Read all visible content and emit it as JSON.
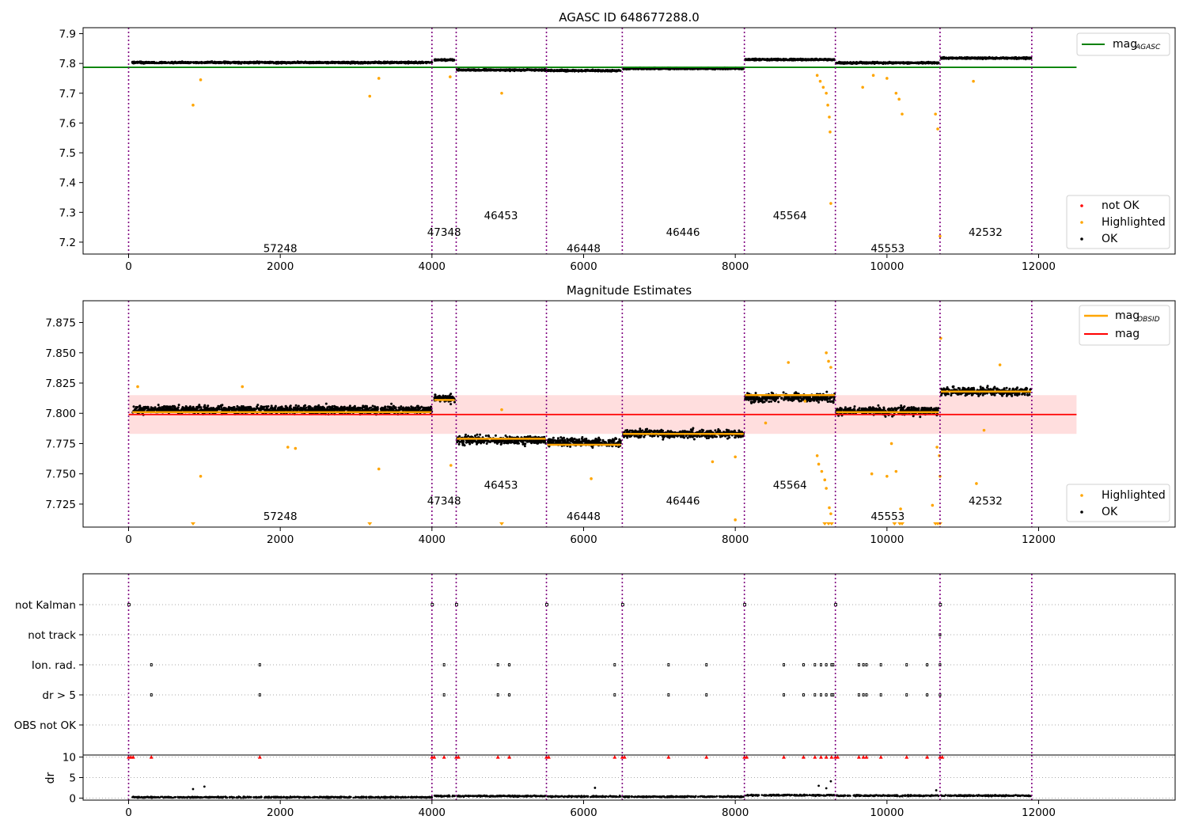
{
  "chart_data": [
    {
      "panel": "top",
      "type": "scatter",
      "title": "AGASC ID 648677288.0",
      "xlim": [
        -600,
        13800
      ],
      "ylim": [
        7.16,
        7.92
      ],
      "xticks": [
        0,
        2000,
        4000,
        6000,
        8000,
        10000,
        12000
      ],
      "yticks": [
        7.2,
        7.3,
        7.4,
        7.5,
        7.6,
        7.7,
        7.8,
        7.9
      ],
      "ok_series": [
        {
          "x0": 50,
          "x1": 4000,
          "y": 7.803
        },
        {
          "x0": 4030,
          "x1": 4300,
          "y": 7.812
        },
        {
          "x0": 4330,
          "x1": 5500,
          "y": 7.778
        },
        {
          "x0": 5520,
          "x1": 6490,
          "y": 7.776
        },
        {
          "x0": 6520,
          "x1": 8110,
          "y": 7.783
        },
        {
          "x0": 8130,
          "x1": 9310,
          "y": 7.813
        },
        {
          "x0": 9330,
          "x1": 10680,
          "y": 7.802
        },
        {
          "x0": 10710,
          "x1": 11900,
          "y": 7.818
        }
      ],
      "highlighted_points": [
        [
          850,
          7.66
        ],
        [
          950,
          7.745
        ],
        [
          3180,
          7.69
        ],
        [
          3300,
          7.75
        ],
        [
          4240,
          7.755
        ],
        [
          4920,
          7.7
        ],
        [
          9080,
          7.76
        ],
        [
          9120,
          7.74
        ],
        [
          9160,
          7.72
        ],
        [
          9200,
          7.7
        ],
        [
          9220,
          7.66
        ],
        [
          9240,
          7.62
        ],
        [
          9250,
          7.57
        ],
        [
          9260,
          7.33
        ],
        [
          9680,
          7.72
        ],
        [
          9820,
          7.76
        ],
        [
          10000,
          7.75
        ],
        [
          10120,
          7.7
        ],
        [
          10160,
          7.68
        ],
        [
          10200,
          7.63
        ],
        [
          10640,
          7.63
        ],
        [
          10670,
          7.58
        ],
        [
          10700,
          7.22
        ],
        [
          11140,
          7.74
        ]
      ],
      "reference_line": {
        "name": "mag_AGASC",
        "y": 7.787,
        "x_start": -600,
        "x_end": 12500
      },
      "obsid_boundaries": [
        0,
        4000,
        4320,
        5510,
        6510,
        8120,
        9320,
        10700,
        11910
      ],
      "obsid_labels": [
        {
          "text": "57248",
          "x": 2000,
          "y": 7.18
        },
        {
          "text": "47348",
          "x": 4160,
          "y": 7.235
        },
        {
          "text": "46453",
          "x": 4910,
          "y": 7.29
        },
        {
          "text": "46448",
          "x": 6000,
          "y": 7.18
        },
        {
          "text": "46446",
          "x": 7310,
          "y": 7.235
        },
        {
          "text": "45564",
          "x": 8720,
          "y": 7.29
        },
        {
          "text": "45553",
          "x": 10010,
          "y": 7.18
        },
        {
          "text": "42532",
          "x": 11300,
          "y": 7.235
        }
      ],
      "legend_upper": {
        "placement": "top-right",
        "entries": [
          {
            "label": "mag",
            "sub": "AGASC",
            "color": "#008000"
          }
        ]
      },
      "legend_lower": {
        "placement": "bottom-right",
        "entries": [
          {
            "label": "not OK",
            "color": "#ff0000"
          },
          {
            "label": "Highlighted",
            "color": "#ffa500"
          },
          {
            "label": "OK",
            "color": "#000000"
          }
        ]
      }
    },
    {
      "panel": "middle",
      "type": "scatter",
      "title": "Magnitude Estimates",
      "xlim": [
        -600,
        13800
      ],
      "ylim": [
        7.706,
        7.893
      ],
      "xticks": [
        0,
        2000,
        4000,
        6000,
        8000,
        10000,
        12000
      ],
      "yticks": [
        7.725,
        7.75,
        7.775,
        7.8,
        7.825,
        7.85,
        7.875
      ],
      "ok_series": [
        {
          "x0": 50,
          "x1": 4000,
          "y": 7.803
        },
        {
          "x0": 4030,
          "x1": 4300,
          "y": 7.812
        },
        {
          "x0": 4330,
          "x1": 5500,
          "y": 7.778
        },
        {
          "x0": 5520,
          "x1": 6490,
          "y": 7.776
        },
        {
          "x0": 6520,
          "x1": 8110,
          "y": 7.783
        },
        {
          "x0": 8130,
          "x1": 9310,
          "y": 7.813
        },
        {
          "x0": 9330,
          "x1": 10680,
          "y": 7.802
        },
        {
          "x0": 10710,
          "x1": 11900,
          "y": 7.818
        }
      ],
      "mag_obsid_segments": [
        {
          "x0": 50,
          "x1": 4000,
          "y": 7.801
        },
        {
          "x0": 4030,
          "x1": 4300,
          "y": 7.811
        },
        {
          "x0": 4330,
          "x1": 5500,
          "y": 7.779
        },
        {
          "x0": 5520,
          "x1": 6490,
          "y": 7.774
        },
        {
          "x0": 6520,
          "x1": 8110,
          "y": 7.783
        },
        {
          "x0": 8130,
          "x1": 9310,
          "y": 7.815
        },
        {
          "x0": 9330,
          "x1": 10680,
          "y": 7.801
        },
        {
          "x0": 10710,
          "x1": 11900,
          "y": 7.818
        }
      ],
      "mag_line": {
        "y": 7.799,
        "band": [
          7.783,
          7.815
        ],
        "x_start": 0,
        "x_end": 12500
      },
      "highlighted_points": [
        [
          120,
          7.822
        ],
        [
          1500,
          7.822
        ],
        [
          2100,
          7.772
        ],
        [
          2200,
          7.771
        ],
        [
          3300,
          7.754
        ],
        [
          4250,
          7.757
        ],
        [
          950,
          7.748
        ],
        [
          6100,
          7.746
        ],
        [
          7700,
          7.76
        ],
        [
          8000,
          7.764
        ],
        [
          4920,
          7.803
        ],
        [
          8400,
          7.792
        ],
        [
          8700,
          7.842
        ],
        [
          9200,
          7.85
        ],
        [
          9230,
          7.843
        ],
        [
          9260,
          7.838
        ],
        [
          9080,
          7.765
        ],
        [
          9100,
          7.758
        ],
        [
          9140,
          7.752
        ],
        [
          9180,
          7.745
        ],
        [
          9200,
          7.738
        ],
        [
          9240,
          7.722
        ],
        [
          9260,
          7.717
        ],
        [
          9800,
          7.75
        ],
        [
          10000,
          7.748
        ],
        [
          10060,
          7.775
        ],
        [
          10120,
          7.752
        ],
        [
          10180,
          7.721
        ],
        [
          10600,
          7.724
        ],
        [
          10660,
          7.772
        ],
        [
          10690,
          7.765
        ],
        [
          10700,
          7.748
        ],
        [
          10710,
          7.862
        ],
        [
          11180,
          7.742
        ],
        [
          11280,
          7.786
        ],
        [
          11490,
          7.84
        ],
        [
          8000,
          7.712
        ],
        [
          8920,
          7.81
        ]
      ],
      "clipped_low_points": [
        [
          850,
          7.708
        ],
        [
          3180,
          7.708
        ],
        [
          4920,
          7.708
        ],
        [
          9180,
          7.708
        ],
        [
          9230,
          7.708
        ],
        [
          9270,
          7.708
        ],
        [
          10100,
          7.708
        ],
        [
          10170,
          7.708
        ],
        [
          10200,
          7.708
        ],
        [
          10640,
          7.708
        ],
        [
          10670,
          7.708
        ],
        [
          10700,
          7.708
        ]
      ],
      "obsid_boundaries": [
        0,
        4000,
        4320,
        5510,
        6510,
        8120,
        9320,
        10700,
        11910
      ],
      "obsid_labels": [
        {
          "text": "57248",
          "x": 2000,
          "y": 7.715
        },
        {
          "text": "47348",
          "x": 4160,
          "y": 7.728
        },
        {
          "text": "46453",
          "x": 4910,
          "y": 7.741
        },
        {
          "text": "46448",
          "x": 6000,
          "y": 7.715
        },
        {
          "text": "46446",
          "x": 7310,
          "y": 7.728
        },
        {
          "text": "45564",
          "x": 8720,
          "y": 7.741
        },
        {
          "text": "45553",
          "x": 10010,
          "y": 7.715
        },
        {
          "text": "42532",
          "x": 11300,
          "y": 7.728
        }
      ],
      "legend_upper": {
        "placement": "top-right",
        "entries": [
          {
            "label": "mag",
            "sub": "OBSID",
            "color": "#ffa500"
          },
          {
            "label": "mag",
            "sub": "",
            "color": "#ff0000"
          }
        ]
      },
      "legend_lower": {
        "placement": "bottom-right",
        "entries": [
          {
            "label": "Highlighted",
            "color": "#ffa500"
          },
          {
            "label": "OK",
            "color": "#000000"
          }
        ]
      }
    },
    {
      "panel": "flags",
      "type": "scatter",
      "categories": [
        "not Kalman",
        "not track",
        "Ion. rad.",
        "dr > 5",
        "OBS not OK"
      ],
      "xlim": [
        -600,
        13800
      ],
      "flag_points": {
        "not Kalman": [
          [
            0,
            30
          ],
          [
            4000,
            30
          ],
          [
            4320,
            30
          ],
          [
            5510,
            30
          ],
          [
            6510,
            30
          ],
          [
            8120,
            30
          ],
          [
            9320,
            30
          ],
          [
            10700,
            30
          ]
        ],
        "not track": [
          [
            10700,
            0
          ]
        ],
        "Ion. rad.": [
          [
            300,
            0
          ],
          [
            1730,
            0
          ],
          [
            4160,
            0
          ],
          [
            4870,
            0
          ],
          [
            5020,
            0
          ],
          [
            6410,
            0
          ],
          [
            7120,
            0
          ],
          [
            7620,
            0
          ],
          [
            8640,
            0
          ],
          [
            8900,
            0
          ],
          [
            9050,
            0
          ],
          [
            9130,
            0
          ],
          [
            9200,
            0
          ],
          [
            9270,
            0
          ],
          [
            9290,
            0
          ],
          [
            9630,
            0
          ],
          [
            9690,
            0
          ],
          [
            9730,
            0
          ],
          [
            9920,
            0
          ],
          [
            10260,
            0
          ],
          [
            10530,
            0
          ],
          [
            10700,
            0
          ]
        ],
        "dr > 5": [
          [
            300,
            0
          ],
          [
            1730,
            0
          ],
          [
            4160,
            0
          ],
          [
            4870,
            0
          ],
          [
            5020,
            0
          ],
          [
            6410,
            0
          ],
          [
            7120,
            0
          ],
          [
            7620,
            0
          ],
          [
            8640,
            0
          ],
          [
            8900,
            0
          ],
          [
            9050,
            0
          ],
          [
            9130,
            0
          ],
          [
            9200,
            0
          ],
          [
            9270,
            0
          ],
          [
            9290,
            0
          ],
          [
            9630,
            0
          ],
          [
            9690,
            0
          ],
          [
            9730,
            0
          ],
          [
            9920,
            0
          ],
          [
            10260,
            0
          ],
          [
            10530,
            0
          ],
          [
            10700,
            0
          ]
        ],
        "OBS not OK": []
      },
      "obsid_boundaries": [
        0,
        4000,
        4320,
        5510,
        6510,
        8120,
        9320,
        10700,
        11910
      ]
    },
    {
      "panel": "dr",
      "type": "scatter",
      "ylabel": "dr",
      "xlim": [
        -600,
        13800
      ],
      "ylim": [
        -0.5,
        10.5
      ],
      "xticks": [
        0,
        2000,
        4000,
        6000,
        8000,
        10000,
        12000
      ],
      "yticks": [
        0,
        5,
        10
      ],
      "dr_segments": [
        {
          "x0": 50,
          "x1": 4000,
          "y": 0.2
        },
        {
          "x0": 4030,
          "x1": 4300,
          "y": 0.5
        },
        {
          "x0": 4330,
          "x1": 5500,
          "y": 0.5
        },
        {
          "x0": 5520,
          "x1": 6490,
          "y": 0.4
        },
        {
          "x0": 6520,
          "x1": 8110,
          "y": 0.35
        },
        {
          "x0": 8130,
          "x1": 9310,
          "y": 0.7
        },
        {
          "x0": 9330,
          "x1": 10680,
          "y": 0.6
        },
        {
          "x0": 10710,
          "x1": 11900,
          "y": 0.6
        }
      ],
      "dr_outliers": [
        [
          850,
          2.2
        ],
        [
          1000,
          2.8
        ],
        [
          6150,
          2.5
        ],
        [
          9100,
          3.0
        ],
        [
          9200,
          2.4
        ],
        [
          9260,
          4.1
        ],
        [
          10650,
          1.9
        ]
      ],
      "capped_points_at_10": [
        0,
        30,
        60,
        300,
        1730,
        4000,
        4030,
        4160,
        4320,
        4350,
        4870,
        5020,
        5510,
        5540,
        6410,
        6510,
        6540,
        7120,
        7620,
        8120,
        8150,
        8640,
        8900,
        9050,
        9130,
        9200,
        9270,
        9320,
        9350,
        9630,
        9690,
        9730,
        9920,
        10260,
        10530,
        10700,
        10730
      ],
      "obsid_boundaries": [
        0,
        4000,
        4320,
        5510,
        6510,
        8120,
        9320,
        10700,
        11910
      ]
    }
  ]
}
